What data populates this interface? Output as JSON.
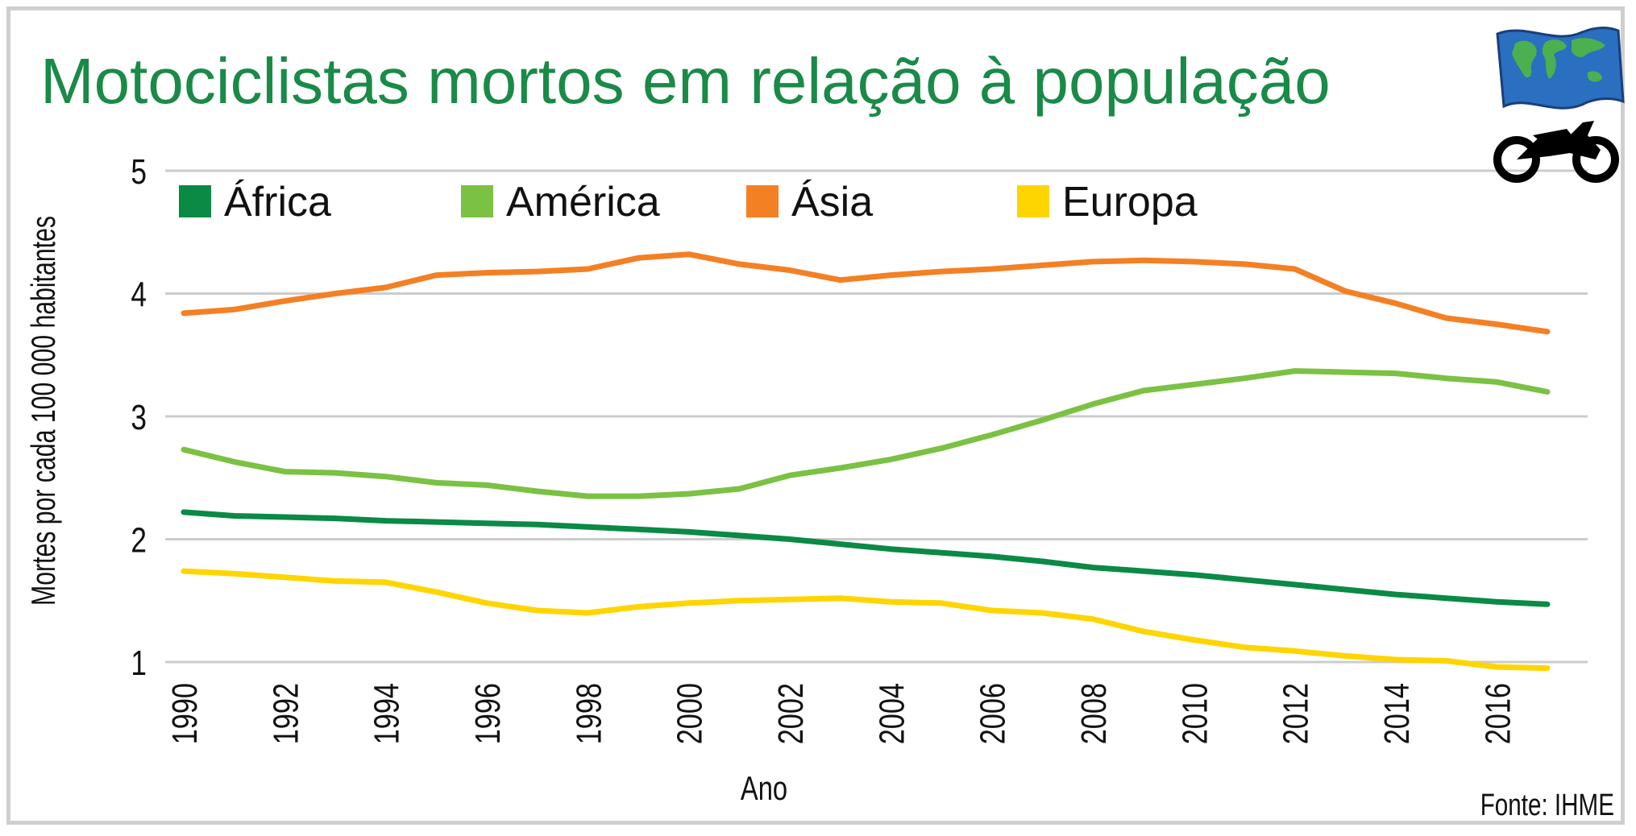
{
  "chart_data": {
    "type": "line",
    "title": "Motociclistas mortos em relação à população",
    "xlabel": "Ano",
    "ylabel": "Mortes por cada 100 000 habitantes",
    "ylim": [
      1,
      5
    ],
    "xlim": [
      1990,
      2017
    ],
    "yticks": [
      "1",
      "2",
      "3",
      "4",
      "5"
    ],
    "xticks": [
      "1990",
      "1992",
      "1994",
      "1996",
      "1998",
      "2000",
      "2002",
      "2004",
      "2006",
      "2008",
      "2010",
      "2012",
      "2014",
      "2016"
    ],
    "grid": "horizontal",
    "legend_position": "top",
    "source": "Fonte: IHME",
    "x": [
      1990,
      1991,
      1992,
      1993,
      1994,
      1995,
      1996,
      1997,
      1998,
      1999,
      2000,
      2001,
      2002,
      2003,
      2004,
      2005,
      2006,
      2007,
      2008,
      2009,
      2010,
      2011,
      2012,
      2013,
      2014,
      2015,
      2016,
      2017
    ],
    "series": [
      {
        "name": "África",
        "color": "#0a8a45",
        "values": [
          2.22,
          2.19,
          2.18,
          2.17,
          2.15,
          2.14,
          2.13,
          2.12,
          2.1,
          2.08,
          2.06,
          2.03,
          2.0,
          1.96,
          1.92,
          1.89,
          1.86,
          1.82,
          1.77,
          1.74,
          1.71,
          1.67,
          1.63,
          1.59,
          1.55,
          1.52,
          1.49,
          1.47
        ]
      },
      {
        "name": "América",
        "color": "#7bc144",
        "values": [
          2.73,
          2.63,
          2.55,
          2.54,
          2.51,
          2.46,
          2.44,
          2.39,
          2.35,
          2.35,
          2.37,
          2.41,
          2.52,
          2.58,
          2.65,
          2.74,
          2.85,
          2.97,
          3.1,
          3.21,
          3.26,
          3.31,
          3.37,
          3.36,
          3.35,
          3.31,
          3.28,
          3.2
        ]
      },
      {
        "name": "Ásia",
        "color": "#f48024",
        "values": [
          3.84,
          3.87,
          3.94,
          4.0,
          4.05,
          4.15,
          4.17,
          4.18,
          4.2,
          4.29,
          4.32,
          4.24,
          4.19,
          4.11,
          4.15,
          4.18,
          4.2,
          4.23,
          4.26,
          4.27,
          4.26,
          4.24,
          4.2,
          4.02,
          3.92,
          3.8,
          3.75,
          3.69
        ]
      },
      {
        "name": "Europa",
        "color": "#ffd500",
        "values": [
          1.74,
          1.72,
          1.69,
          1.66,
          1.65,
          1.57,
          1.48,
          1.42,
          1.4,
          1.45,
          1.48,
          1.5,
          1.51,
          1.52,
          1.49,
          1.48,
          1.42,
          1.4,
          1.35,
          1.25,
          1.18,
          1.12,
          1.09,
          1.05,
          1.02,
          1.01,
          0.96,
          0.95
        ]
      }
    ]
  },
  "colors": {
    "title": "#1a8a48",
    "grid": "#cccccc",
    "frame": "#cfcfcf"
  },
  "icons": [
    "world-map-flag-icon",
    "motorcycle-icon"
  ]
}
